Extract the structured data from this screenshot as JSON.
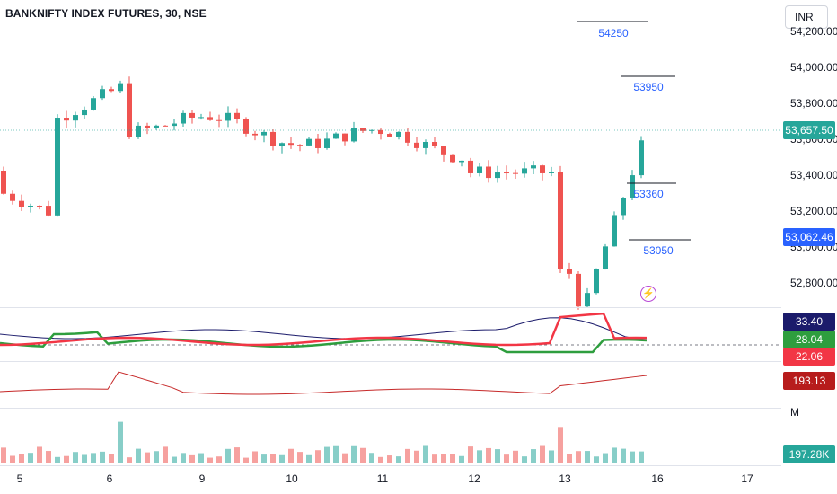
{
  "header": {
    "title": "BANKNIFTY INDEX FUTURES, 30, NSE",
    "currency": "INR"
  },
  "price_axis": [
    "54,200.00",
    "54,000.00",
    "53,800.00",
    "53,600.00",
    "53,400.00",
    "53,200.00",
    "53,000.00",
    "52,800.00"
  ],
  "price_tags": {
    "last": "53,657.50",
    "level": "53,062.46"
  },
  "levels": [
    {
      "value": 54250,
      "label": "54250"
    },
    {
      "value": 53950,
      "label": "53950"
    },
    {
      "value": 53360,
      "label": "53360"
    },
    {
      "value": 53050,
      "label": "53050"
    }
  ],
  "indicator_tags": {
    "adx": "33.40",
    "plus_di": "28.04",
    "minus_di": "22.06",
    "line": "193.13",
    "volume": "197.28K"
  },
  "volume_unit": "M",
  "date_axis": [
    "5",
    "6",
    "9",
    "10",
    "11",
    "12",
    "13",
    "16",
    "17"
  ],
  "colors": {
    "up": "#26a69a",
    "down": "#ef5350",
    "level": "#2962ff",
    "adx": "#1b1b6b",
    "plus": "#2e9e3e",
    "minus": "#f23645",
    "line": "#c62828"
  },
  "icons": {
    "alert": "lightning-icon"
  }
}
